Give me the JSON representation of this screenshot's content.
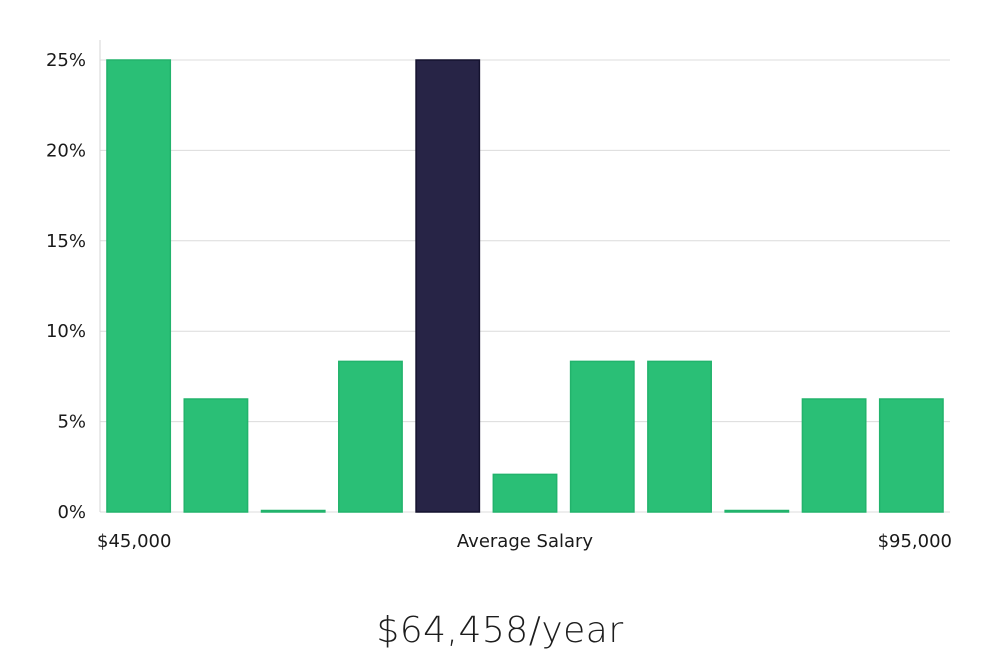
{
  "chart_data": {
    "type": "bar",
    "title": "",
    "xlabel": "Average Salary",
    "ylabel": "",
    "x_min_label": "$45,000",
    "x_max_label": "$95,000",
    "ylim": [
      0,
      25
    ],
    "yticks": [
      0,
      5,
      10,
      15,
      20,
      25
    ],
    "ytick_labels": [
      "0%",
      "5%",
      "10%",
      "15%",
      "20%",
      "25%"
    ],
    "values": [
      25,
      6.25,
      0,
      8.33,
      25,
      2.08,
      8.33,
      8.33,
      0,
      6.25,
      6.25
    ],
    "highlight_index": 4,
    "colors": {
      "bar": "#2abf76",
      "bar_edge": "#22b36c",
      "highlight": "#272446",
      "highlight_edge": "#14122e"
    }
  },
  "salary": {
    "display": "$64,458/year"
  }
}
